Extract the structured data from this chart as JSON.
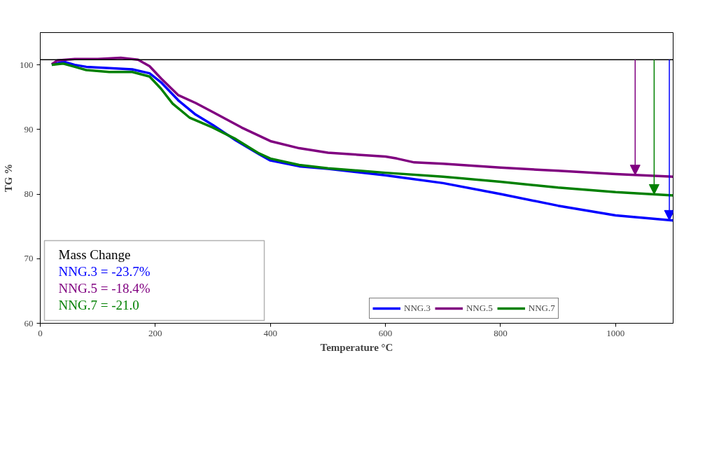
{
  "chart_data": {
    "type": "line",
    "xlabel": "Temperature °C",
    "ylabel": "TG %",
    "xlim": [
      0,
      1100
    ],
    "xticks": [
      0,
      200,
      400,
      600,
      800,
      1000
    ],
    "ylim": [
      60,
      105
    ],
    "yticks": [
      60,
      70,
      80,
      90,
      100
    ],
    "grid": false,
    "legend": "bottom",
    "marker": "none",
    "line_style": "solid",
    "ref_lines": [
      {
        "axis": "y",
        "value": 100.8,
        "label": null,
        "color": "#000000"
      }
    ],
    "annotations": [
      "Mass Change",
      "NNG.3 = -23.7%",
      "NNG.5 = -18.4%",
      "NNG.7 = -21.0"
    ],
    "series": [
      {
        "name": "NNG.3",
        "color": "#0000ff",
        "x": [
          20,
          40,
          60,
          80,
          120,
          160,
          190,
          210,
          240,
          270,
          300,
          340,
          380,
          400,
          450,
          500,
          600,
          700,
          800,
          900,
          1000,
          1100
        ],
        "values": [
          100.0,
          100.5,
          100.0,
          99.7,
          99.5,
          99.3,
          98.7,
          97.3,
          94.5,
          92.3,
          90.7,
          88.3,
          86.2,
          85.2,
          84.3,
          83.9,
          82.9,
          81.7,
          80.0,
          78.2,
          76.7,
          75.9
        ]
      },
      {
        "name": "NNG.5",
        "color": "#800080",
        "x": [
          20,
          30,
          60,
          100,
          140,
          170,
          190,
          210,
          240,
          270,
          300,
          350,
          400,
          450,
          500,
          600,
          620,
          650,
          700,
          800,
          900,
          1000,
          1100
        ],
        "values": [
          100.1,
          100.7,
          100.9,
          100.9,
          101.1,
          100.8,
          99.8,
          97.9,
          95.3,
          94.1,
          92.7,
          90.3,
          88.2,
          87.1,
          86.4,
          85.8,
          85.5,
          84.9,
          84.7,
          84.1,
          83.6,
          83.1,
          82.7
        ]
      },
      {
        "name": "NNG.7",
        "color": "#008000",
        "x": [
          20,
          40,
          60,
          80,
          120,
          160,
          190,
          210,
          230,
          260,
          300,
          340,
          380,
          400,
          450,
          500,
          600,
          700,
          800,
          900,
          1000,
          1100
        ],
        "values": [
          100.0,
          100.2,
          99.7,
          99.2,
          98.9,
          98.9,
          98.2,
          96.3,
          94.0,
          91.8,
          90.3,
          88.5,
          86.3,
          85.5,
          84.5,
          84.0,
          83.3,
          82.7,
          81.9,
          81.0,
          80.3,
          79.8
        ]
      }
    ]
  }
}
